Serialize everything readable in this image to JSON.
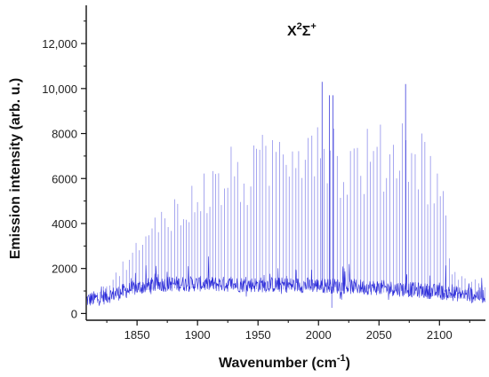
{
  "chart_data": {
    "type": "line",
    "title": "",
    "xlabel": "Wavenumber (cm-1)",
    "xlabel_main": "Wavenumber (cm",
    "xlabel_sup": "-1",
    "xlabel_end": ")",
    "ylabel": "Emission intensity (arb. u.)",
    "annotation": {
      "base": "X",
      "sup1": "2",
      "sigma": "Σ",
      "sup2": "+"
    },
    "xlim": [
      1808,
      2138
    ],
    "ylim": [
      -300,
      13700
    ],
    "x_ticks": [
      1850,
      1900,
      1950,
      2000,
      2050,
      2100
    ],
    "x_tick_labels": [
      "1850",
      "1900",
      "1950",
      "2000",
      "2050",
      "2100"
    ],
    "y_ticks": [
      0,
      2000,
      4000,
      6000,
      8000,
      10000,
      12000
    ],
    "y_tick_labels": [
      "0",
      "2000",
      "4000",
      "6000",
      "8000",
      "10,000",
      "12,000"
    ],
    "line_color": "#1a1ad6",
    "series": [
      {
        "baseline": {
          "x": [
            1808,
            1820,
            1830,
            1840,
            1850,
            1860,
            1870,
            1880,
            1900,
            1950,
            2000,
            2050,
            2080,
            2100,
            2120,
            2138
          ],
          "y": [
            600,
            700,
            850,
            1000,
            1150,
            1250,
            1300,
            1320,
            1320,
            1280,
            1250,
            1150,
            1050,
            950,
            850,
            800
          ]
        },
        "peak_envelope": {
          "x": [
            1808,
            1830,
            1840,
            1850,
            1860,
            1870,
            1880,
            1890,
            1900,
            1910,
            1920,
            1930,
            1940,
            1950,
            1960,
            1970,
            1980,
            1990,
            2000,
            2010,
            2020,
            2030,
            2040,
            2050,
            2060,
            2070,
            2080,
            2090,
            2100,
            2110,
            2120,
            2138
          ],
          "y": [
            700,
            1600,
            2600,
            3300,
            3800,
            5300,
            5600,
            4800,
            6800,
            6500,
            7000,
            7600,
            7200,
            7800,
            8400,
            9000,
            9500,
            9600,
            9800,
            9400,
            7500,
            8200,
            8400,
            8400,
            8800,
            9400,
            9000,
            8000,
            7400,
            2200,
            1700,
            1400
          ]
        },
        "notable_peaks": [
          {
            "x": 2003,
            "y": 10300
          },
          {
            "x": 2072,
            "y": 10200
          },
          {
            "x": 2009,
            "y": 9700
          },
          {
            "x": 2012,
            "y": 9700
          }
        ],
        "line_spacing_cm1": 2.6
      }
    ]
  }
}
